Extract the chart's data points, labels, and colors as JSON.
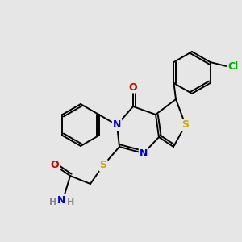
{
  "bg_color": "#e6e6e6",
  "atom_colors": {
    "C": "#000000",
    "N": "#0000cc",
    "O": "#cc0000",
    "S": "#ccaa00",
    "Cl": "#00aa00",
    "H": "#888888"
  },
  "figsize": [
    3.0,
    3.0
  ],
  "dpi": 100,
  "bond_lw": 1.4,
  "font_size": 9
}
